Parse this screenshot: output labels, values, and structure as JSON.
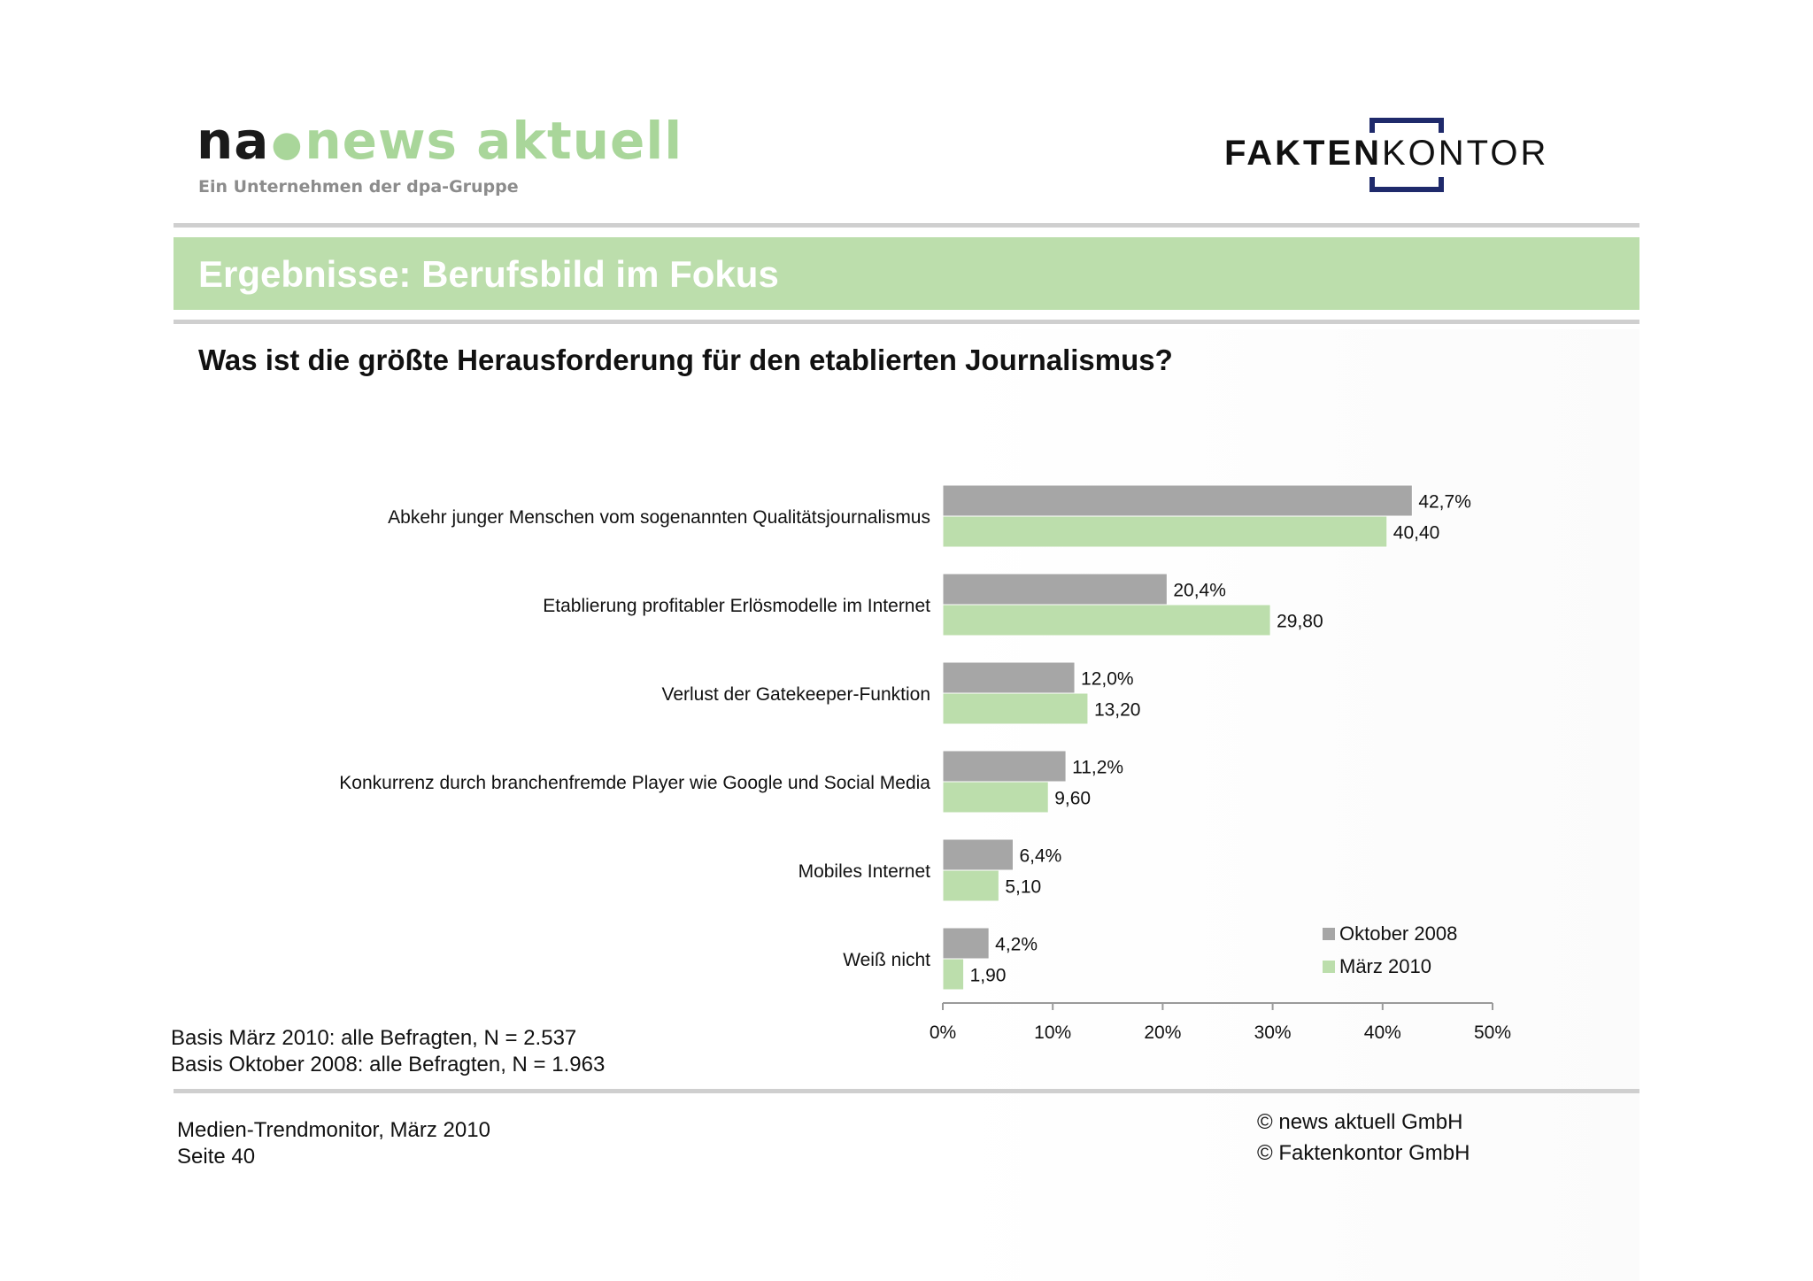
{
  "header": {
    "logo_left": {
      "mark": "na",
      "name": "news aktuell",
      "subtitle": "Ein Unternehmen der dpa-Gruppe"
    },
    "logo_right": {
      "strong": "FAKTEN",
      "light": "KONTOR"
    }
  },
  "slide": {
    "title": "Ergebnisse: Berufsbild im Fokus",
    "question": "Was ist die größte Herausforderung für den etablierten Journalismus?",
    "basis": [
      "Basis März 2010: alle Befragten, N = 2.537",
      "Basis Oktober 2008: alle Befragten, N = 1.963"
    ]
  },
  "footer": {
    "left": [
      "Medien-Trendmonitor, März 2010",
      "Seite 40"
    ],
    "right": [
      "© news aktuell GmbH",
      "© Faktenkontor GmbH"
    ]
  },
  "colors": {
    "accent_green": "#bcdeac",
    "series_gray": "#a6a6a6",
    "series_green": "#bcdeac",
    "rule_gray": "#cfcfcf"
  },
  "chart_data": {
    "type": "bar",
    "orientation": "horizontal",
    "categories": [
      "Abkehr junger Menschen vom sogenannten Qualitätsjournalismus",
      "Etablierung profitabler Erlösmodelle im Internet",
      "Verlust der Gatekeeper-Funktion",
      "Konkurrenz durch branchenfremde Player wie Google und Social Media",
      "Mobiles Internet",
      "Weiß nicht"
    ],
    "series": [
      {
        "name": "Oktober 2008",
        "color": "#a6a6a6",
        "values": [
          42.7,
          20.4,
          12.0,
          11.2,
          6.4,
          4.2
        ],
        "labels": [
          "42,7%",
          "20,4%",
          "12,0%",
          "11,2%",
          "6,4%",
          "4,2%"
        ]
      },
      {
        "name": "März 2010",
        "color": "#bcdeac",
        "values": [
          40.4,
          29.8,
          13.2,
          9.6,
          5.1,
          1.9
        ],
        "labels": [
          "40,40",
          "29,80",
          "13,20",
          "9,60",
          "5,10",
          "1,90"
        ]
      }
    ],
    "xlim": [
      0,
      50
    ],
    "xticks": [
      "0%",
      "10%",
      "20%",
      "30%",
      "40%",
      "50%"
    ],
    "grid": false,
    "legend_position": "bottom-right"
  }
}
